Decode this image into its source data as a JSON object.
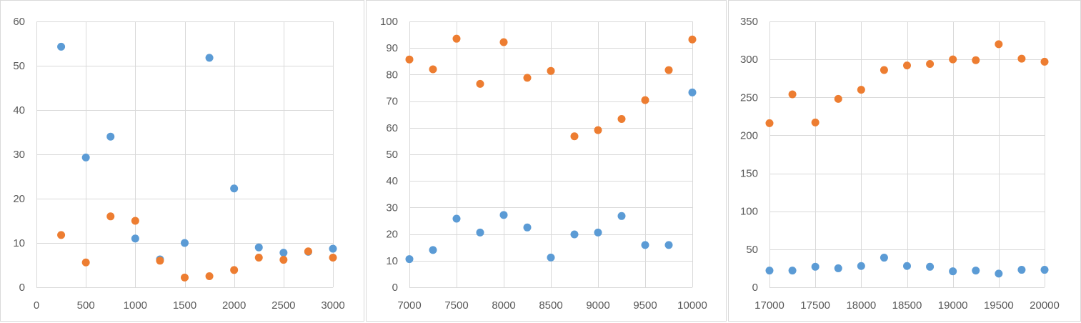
{
  "colors": {
    "series1": "#5b9bd5",
    "series2": "#ed7d31",
    "grid": "#d9d9d9",
    "tick_text": "#595959"
  },
  "chart_data": [
    {
      "type": "scatter",
      "xlim": [
        0,
        3000
      ],
      "ylim": [
        0,
        60
      ],
      "x_ticks": [
        0,
        500,
        1000,
        1500,
        2000,
        2500,
        3000
      ],
      "y_ticks": [
        0,
        10,
        20,
        30,
        40,
        50,
        60
      ],
      "grid": true,
      "legend": "none",
      "series": [
        {
          "x": [
            250,
            500,
            750,
            1000,
            1250,
            1500,
            1750,
            2000,
            2250,
            2500,
            2750,
            3000
          ],
          "y": [
            54.3,
            29.3,
            34.0,
            11.0,
            6.3,
            10.0,
            51.8,
            22.3,
            9.0,
            7.8,
            8.0,
            8.7
          ]
        },
        {
          "x": [
            250,
            500,
            750,
            1000,
            1250,
            1500,
            1750,
            2000,
            2250,
            2500,
            2750,
            3000
          ],
          "y": [
            11.8,
            5.6,
            16.0,
            15.0,
            6.0,
            2.2,
            2.5,
            3.9,
            6.7,
            6.2,
            8.1,
            6.7
          ]
        }
      ]
    },
    {
      "type": "scatter",
      "xlim": [
        7000,
        10000
      ],
      "ylim": [
        0,
        100
      ],
      "x_ticks": [
        7000,
        7500,
        8000,
        8500,
        9000,
        9500,
        10000
      ],
      "y_ticks": [
        0,
        10,
        20,
        30,
        40,
        50,
        60,
        70,
        80,
        90,
        100
      ],
      "grid": true,
      "legend": "none",
      "series": [
        {
          "x": [
            7000,
            7250,
            7500,
            7750,
            8000,
            8250,
            8500,
            8750,
            9000,
            9250,
            9500,
            9750,
            10000
          ],
          "y": [
            10.6,
            14.0,
            25.8,
            20.6,
            27.2,
            22.5,
            11.2,
            19.9,
            20.6,
            26.8,
            15.9,
            15.9,
            73.3
          ]
        },
        {
          "x": [
            7000,
            7250,
            7500,
            7750,
            8000,
            8250,
            8500,
            8750,
            9000,
            9250,
            9500,
            9750,
            10000
          ],
          "y": [
            85.7,
            82.0,
            93.5,
            76.5,
            92.2,
            78.8,
            81.4,
            56.8,
            59.1,
            63.3,
            70.4,
            81.7,
            93.2
          ]
        }
      ]
    },
    {
      "type": "scatter",
      "xlim": [
        17000,
        20000
      ],
      "ylim": [
        0,
        350
      ],
      "x_ticks": [
        17000,
        17500,
        18000,
        18500,
        19000,
        19500,
        20000
      ],
      "y_ticks": [
        0,
        50,
        100,
        150,
        200,
        250,
        300,
        350
      ],
      "grid": true,
      "legend": "none",
      "series": [
        {
          "x": [
            17000,
            17250,
            17500,
            17750,
            18000,
            18250,
            18500,
            18750,
            19000,
            19250,
            19500,
            19750,
            20000
          ],
          "y": [
            22,
            22,
            27,
            25,
            28,
            39,
            28,
            27,
            21,
            22,
            18,
            23,
            23
          ]
        },
        {
          "x": [
            17000,
            17250,
            17500,
            17750,
            18000,
            18250,
            18500,
            18750,
            19000,
            19250,
            19500,
            19750,
            20000
          ],
          "y": [
            216,
            254,
            217,
            248,
            260,
            286,
            292,
            294,
            300,
            299,
            320,
            301,
            297
          ]
        }
      ]
    }
  ]
}
